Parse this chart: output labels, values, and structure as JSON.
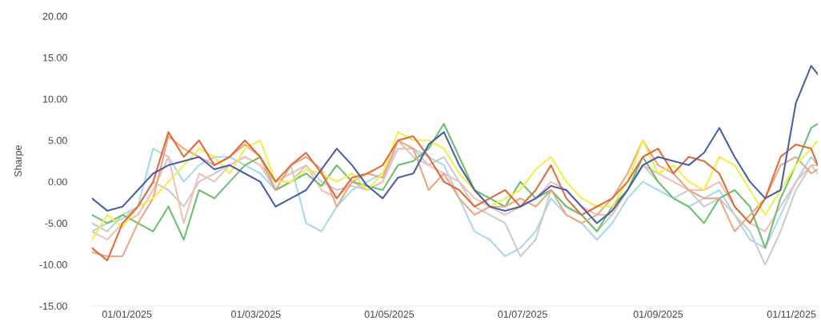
{
  "chart_data": {
    "type": "line",
    "ylabel": "Sharpe",
    "x": [
      "2024-12-16",
      "2024-12-23",
      "2024-12-30",
      "2025-01-06",
      "2025-01-13",
      "2025-01-20",
      "2025-01-27",
      "2025-02-03",
      "2025-02-10",
      "2025-02-17",
      "2025-02-24",
      "2025-03-03",
      "2025-03-10",
      "2025-03-17",
      "2025-03-24",
      "2025-03-31",
      "2025-04-07",
      "2025-04-14",
      "2025-04-21",
      "2025-04-28",
      "2025-05-05",
      "2025-05-12",
      "2025-05-19",
      "2025-05-26",
      "2025-06-02",
      "2025-06-09",
      "2025-06-16",
      "2025-06-23",
      "2025-06-30",
      "2025-07-07",
      "2025-07-14",
      "2025-07-21",
      "2025-07-28",
      "2025-08-04",
      "2025-08-11",
      "2025-08-18",
      "2025-08-25",
      "2025-09-01",
      "2025-09-08",
      "2025-09-15",
      "2025-09-22",
      "2025-09-29",
      "2025-10-06",
      "2025-10-13",
      "2025-10-20",
      "2025-10-27",
      "2025-11-03",
      "2025-11-10",
      "2025-11-13"
    ],
    "series": [
      {
        "color": "#a8d8ec",
        "values": [
          -6,
          -5,
          -4.5,
          -3,
          4,
          3,
          0,
          2,
          3,
          3,
          2,
          1,
          -1,
          2,
          -5,
          -6,
          -3,
          -1,
          0,
          1,
          4,
          4,
          3,
          2,
          -2,
          -6,
          -7,
          -9,
          -8,
          -6,
          -2,
          -4,
          -5,
          -7,
          -5,
          -2,
          0,
          -1,
          -2,
          -3,
          -2,
          -1,
          -4,
          -7,
          -8,
          -4,
          0,
          3,
          2
        ]
      },
      {
        "color": "#cccccc",
        "values": [
          -5,
          -6,
          -4,
          -3,
          0,
          -1,
          -3,
          0,
          1,
          2,
          3,
          2,
          -1,
          0,
          2,
          0,
          -1,
          -0.5,
          -1,
          0,
          5,
          3,
          2,
          3,
          0,
          -3,
          -4,
          -5,
          -9,
          -7,
          -1,
          -3,
          -4,
          -6,
          -4,
          -1,
          2,
          0,
          -2,
          -1,
          -3,
          -2,
          -4,
          -6,
          -10,
          -6,
          -1,
          2,
          1
        ]
      },
      {
        "color": "#f0c0b8",
        "values": [
          -6,
          -7,
          -5,
          -4,
          -1,
          3,
          -5,
          1,
          0,
          2,
          3,
          2,
          0,
          1,
          2,
          -1,
          -2,
          0,
          -1,
          0,
          4,
          4,
          2,
          1,
          0,
          -2,
          -3,
          -4,
          -3,
          -2,
          0,
          -1,
          -3,
          -4,
          -4,
          -1,
          2,
          1,
          0,
          -1,
          -1,
          0,
          -3,
          -5,
          -6,
          -3,
          0,
          2,
          2
        ]
      },
      {
        "color": "#6cc070",
        "values": [
          -4,
          -5,
          -4,
          -5,
          -6,
          -3,
          -7,
          -1,
          -2,
          0,
          2,
          3,
          -1,
          0,
          1,
          -0.5,
          2,
          0,
          -0.5,
          -1,
          2,
          2.5,
          4,
          7,
          3,
          -1,
          -2,
          -3,
          0,
          -2,
          -1,
          -3,
          -4,
          -6,
          -3,
          -1,
          3,
          0,
          -2,
          -3,
          -5,
          -2,
          -1,
          -3,
          -8,
          -2,
          2,
          6.5,
          7
        ]
      },
      {
        "color": "#e8a882",
        "values": [
          -8.5,
          -9,
          -9,
          -5,
          -2,
          5.5,
          4,
          3,
          2,
          3,
          4.5,
          3,
          -1,
          2,
          3,
          1.5,
          -3,
          0,
          1,
          0.5,
          5,
          4,
          -1,
          1,
          -2,
          -4,
          -3,
          -3,
          -2,
          -3,
          -1,
          -4,
          -5,
          -4,
          -2,
          1,
          5,
          2,
          1,
          -1,
          -2,
          -2,
          -6,
          -4,
          -2,
          2,
          3,
          1,
          1.5
        ]
      },
      {
        "color": "#f0f04a",
        "values": [
          -7,
          -4,
          -5.5,
          -3,
          -2,
          0,
          2,
          4,
          3,
          1,
          4,
          5,
          0,
          0,
          1.5,
          1,
          0,
          1,
          -1,
          1,
          6,
          5,
          5,
          4,
          1,
          -1,
          -3,
          -2,
          -1,
          1.5,
          3,
          0,
          -2,
          -3,
          -3,
          0,
          5,
          1,
          2,
          0,
          -1,
          3,
          2,
          -1,
          -4,
          -1,
          2,
          4,
          5
        ]
      },
      {
        "color": "#e06c3c",
        "values": [
          -8,
          -9.5,
          -5,
          -3,
          0,
          6,
          3,
          5,
          2,
          3,
          5,
          3,
          0,
          2,
          3.5,
          1,
          -2,
          0.5,
          1,
          2,
          5,
          5.5,
          3,
          0,
          -1,
          -3,
          -2,
          -1,
          -3,
          -1,
          2,
          -2,
          -4,
          -3,
          -2,
          0,
          3,
          4,
          1,
          3,
          2.5,
          1,
          -3,
          -5,
          -2,
          3,
          4.5,
          4,
          2
        ]
      },
      {
        "color": "#4a5fa8",
        "values": [
          -2,
          -3.5,
          -3,
          -1,
          1,
          2,
          2.5,
          3,
          1.5,
          2,
          1,
          0,
          -3,
          -2,
          -1,
          1.5,
          4,
          2,
          -0.5,
          -2,
          0.5,
          1,
          4.5,
          6,
          2,
          -1,
          -3,
          -3.5,
          -3,
          -2,
          -0.5,
          -1,
          -3,
          -5,
          -3.5,
          -1,
          2,
          3,
          2.5,
          2,
          3.5,
          6.5,
          3,
          0,
          -2,
          -1,
          9.5,
          14,
          13
        ]
      }
    ],
    "xlim": [
      "2024-12-16",
      "2025-11-13"
    ],
    "xticks": [
      {
        "value": "2025-01-01",
        "label": "01/01/2025"
      },
      {
        "value": "2025-03-01",
        "label": "01/03/2025"
      },
      {
        "value": "2025-05-01",
        "label": "01/05/2025"
      },
      {
        "value": "2025-07-01",
        "label": "01/07/2025"
      },
      {
        "value": "2025-09-01",
        "label": "01/09/2025"
      },
      {
        "value": "2025-11-01",
        "label": "01/11/2025"
      }
    ],
    "ylim": [
      -15,
      20
    ],
    "yticks": [
      {
        "value": -15,
        "label": "-15.00"
      },
      {
        "value": -10,
        "label": "-10.00"
      },
      {
        "value": -5,
        "label": "-5.00"
      },
      {
        "value": 0,
        "label": "0.00"
      },
      {
        "value": 5,
        "label": "5.00"
      },
      {
        "value": 10,
        "label": "10.00"
      },
      {
        "value": 15,
        "label": "15.00"
      },
      {
        "value": 20,
        "label": "20.00"
      }
    ],
    "grid": false,
    "marker": "none",
    "line_style": "solid"
  }
}
